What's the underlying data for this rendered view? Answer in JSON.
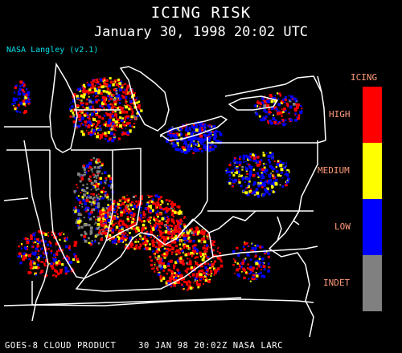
{
  "header": {
    "title": "ICING RISK",
    "subtitle": "January 30, 1998 20:02 UTC",
    "credit": "NASA Langley (v2.1)"
  },
  "footer": {
    "text": "GOES-8 CLOUD PRODUCT    30 JAN 98 20:02Z NASA LARC"
  },
  "legend": {
    "title": "ICING",
    "levels": [
      {
        "label": "HIGH",
        "color": "#ff0000"
      },
      {
        "label": "MEDIUM",
        "color": "#ffff00"
      },
      {
        "label": "LOW",
        "color": "#0000ff"
      },
      {
        "label": "INDET",
        "color": "#808080"
      }
    ]
  },
  "colors": {
    "background": "#000000",
    "boundaries": "#ffffff",
    "credit": "#00e0e8",
    "legend_text": "#ff9a7a"
  }
}
